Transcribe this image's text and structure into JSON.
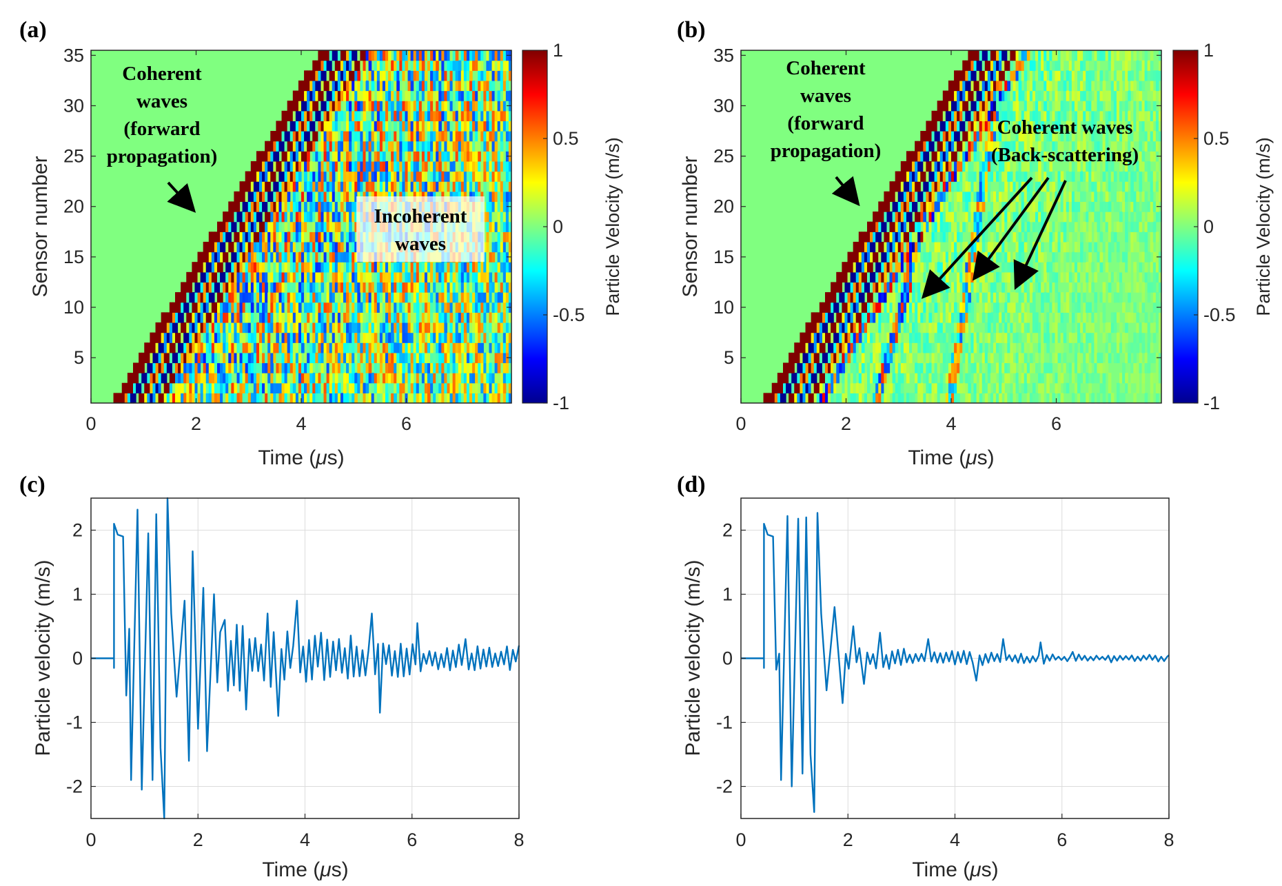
{
  "chart_data": [
    {
      "id": "a",
      "panel_label": "(a)",
      "type": "heatmap",
      "xlabel_pre": "Time (",
      "xlabel_mu": "μ",
      "xlabel_post": "s)",
      "ylabel": "Sensor number",
      "xlim": [
        0,
        8
      ],
      "ylim": [
        0.5,
        35.5
      ],
      "xticks": [
        0,
        2,
        4,
        6
      ],
      "yticks": [
        5,
        10,
        15,
        20,
        25,
        30,
        35
      ],
      "colorbar": {
        "label": "Particle Velocity (m/s)",
        "range": [
          -1,
          1
        ],
        "ticks": [
          -1,
          -0.5,
          0,
          0.5,
          1
        ],
        "colormap": "jet"
      },
      "sensors": 35,
      "front_start_time": 0.45,
      "front_end_time": 4.3,
      "coherent_band_width": 0.95,
      "coda_amplitude": 0.75,
      "backscatter": false,
      "annotations": [
        {
          "lines": [
            "Coherent",
            "waves",
            "(forward",
            "propagation)"
          ],
          "arrow_to": [
            2.0,
            19.0
          ]
        },
        {
          "lines": [
            "Incoherent",
            "waves"
          ],
          "boxed": true
        }
      ]
    },
    {
      "id": "b",
      "panel_label": "(b)",
      "type": "heatmap",
      "xlabel_pre": "Time (",
      "xlabel_mu": "μ",
      "xlabel_post": "s)",
      "ylabel": "Sensor number",
      "xlim": [
        0,
        8
      ],
      "ylim": [
        0.5,
        35.5
      ],
      "xticks": [
        0,
        2,
        4,
        6
      ],
      "yticks": [
        5,
        10,
        15,
        20,
        25,
        30,
        35
      ],
      "colorbar": {
        "label": "Particle Velocity (m/s)",
        "range": [
          -1,
          1
        ],
        "ticks": [
          -1,
          -0.5,
          0,
          0.5,
          1
        ],
        "colormap": "jet"
      },
      "sensors": 35,
      "front_start_time": 0.45,
      "front_end_time": 4.3,
      "coherent_band_width": 0.95,
      "coda_amplitude": 0.28,
      "backscatter": true,
      "annotations": [
        {
          "lines": [
            "Coherent",
            "waves",
            "(forward",
            "propagation)"
          ],
          "arrow_to": [
            2.1,
            19.5
          ]
        },
        {
          "lines": [
            "Coherent waves",
            "(Back-scattering)"
          ],
          "arrows_to": [
            [
              3.5,
              11.0
            ],
            [
              4.4,
              13.0
            ],
            [
              5.3,
              12.0
            ]
          ]
        }
      ]
    },
    {
      "id": "c",
      "panel_label": "(c)",
      "type": "line",
      "xlabel_pre": "Time (",
      "xlabel_mu": "μ",
      "xlabel_post": "s)",
      "ylabel": "Particle velocity (m/s)",
      "xlim": [
        0,
        8
      ],
      "ylim": [
        -2.5,
        2.5
      ],
      "xticks": [
        0,
        2,
        4,
        6,
        8
      ],
      "yticks": [
        -2,
        -1,
        0,
        1,
        2
      ],
      "grid": true,
      "color": "#0072BD",
      "onset_time": 0.43,
      "peaks": [
        [
          0.43,
          2.1
        ],
        [
          0.5,
          1.93
        ],
        [
          0.6,
          1.9
        ],
        [
          0.75,
          -1.9
        ],
        [
          0.87,
          2.32
        ],
        [
          0.95,
          -2.05
        ],
        [
          1.07,
          1.95
        ],
        [
          1.15,
          -1.9
        ],
        [
          1.22,
          2.25
        ],
        [
          1.3,
          -1.4
        ],
        [
          1.37,
          -2.5
        ],
        [
          1.43,
          2.5
        ],
        [
          1.5,
          0.7
        ],
        [
          1.6,
          -0.6
        ],
        [
          1.75,
          0.9
        ],
        [
          1.83,
          -1.6
        ],
        [
          1.9,
          1.67
        ],
        [
          2.0,
          -1.1
        ],
        [
          2.1,
          1.1
        ],
        [
          2.17,
          -1.45
        ],
        [
          2.3,
          1.0
        ],
        [
          2.5,
          0.6
        ],
        [
          2.9,
          -0.8
        ],
        [
          3.3,
          0.7
        ],
        [
          3.5,
          -0.9
        ],
        [
          3.85,
          0.9
        ],
        [
          4.3,
          0.4
        ],
        [
          5.25,
          0.7
        ],
        [
          5.4,
          -0.85
        ],
        [
          6.1,
          0.55
        ],
        [
          7.0,
          0.3
        ],
        [
          8.0,
          0.2
        ]
      ],
      "trace_amplitude": 0.5,
      "series": [
        {
          "name": "Particle velocity",
          "values": "sampled trace, oscillatory decay from ±2.3 to ±0.3 over 0.43–8 μs"
        }
      ]
    },
    {
      "id": "d",
      "panel_label": "(d)",
      "type": "line",
      "xlabel_pre": "Time (",
      "xlabel_mu": "μ",
      "xlabel_post": "s)",
      "ylabel": "Particle velocity (m/s)",
      "xlim": [
        0,
        8
      ],
      "ylim": [
        -2.5,
        2.5
      ],
      "xticks": [
        0,
        2,
        4,
        6,
        8
      ],
      "yticks": [
        -2,
        -1,
        0,
        1,
        2
      ],
      "grid": true,
      "color": "#0072BD",
      "onset_time": 0.43,
      "peaks": [
        [
          0.43,
          2.1
        ],
        [
          0.5,
          1.93
        ],
        [
          0.6,
          1.9
        ],
        [
          0.75,
          -1.9
        ],
        [
          0.87,
          2.22
        ],
        [
          0.95,
          -2.0
        ],
        [
          1.07,
          2.18
        ],
        [
          1.15,
          -1.8
        ],
        [
          1.22,
          2.2
        ],
        [
          1.3,
          -1.5
        ],
        [
          1.37,
          -2.4
        ],
        [
          1.43,
          2.27
        ],
        [
          1.5,
          0.7
        ],
        [
          1.6,
          -0.5
        ],
        [
          1.75,
          0.8
        ],
        [
          1.9,
          -0.7
        ],
        [
          2.1,
          0.5
        ],
        [
          2.3,
          -0.4
        ],
        [
          2.6,
          0.4
        ],
        [
          3.5,
          0.3
        ],
        [
          4.4,
          -0.35
        ],
        [
          4.9,
          0.3
        ],
        [
          5.6,
          0.25
        ],
        [
          6.2,
          0.1
        ],
        [
          8.0,
          0.05
        ]
      ],
      "trace_amplitude": 0.15,
      "series": [
        {
          "name": "Particle velocity",
          "values": "sampled trace, rapid decay from ±2.2 to ±0.05 over 0.43–8 μs"
        }
      ]
    }
  ]
}
